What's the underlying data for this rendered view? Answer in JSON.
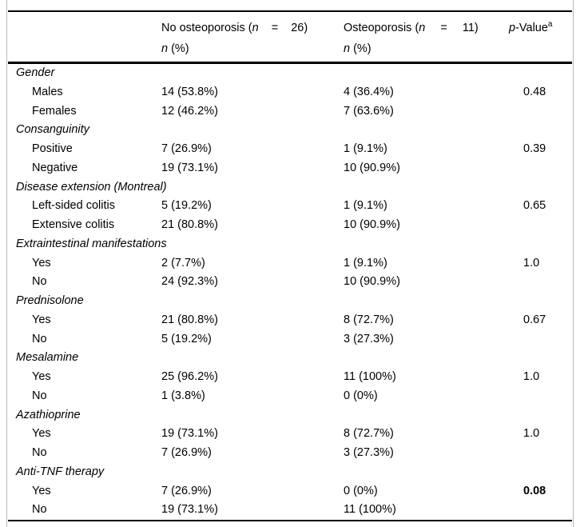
{
  "header": {
    "col2": {
      "prefix": "No osteoporosis (",
      "n": "n",
      "eq": "=",
      "count": "26)"
    },
    "col3": {
      "prefix": "Osteoporosis (",
      "n": "n",
      "eq": "=",
      "count": "11)"
    },
    "col4": {
      "p": "p",
      "rest": "-Value",
      "sup": "a"
    },
    "subheader": {
      "n": "n",
      "pct": "(%)"
    }
  },
  "table": {
    "groups": [
      {
        "label": "Gender",
        "rows": [
          {
            "label": "Males",
            "no_osteoporosis": "14 (53.8%)",
            "osteoporosis": "4 (36.4%)",
            "p_value": "0.48",
            "p_bold": false
          },
          {
            "label": "Females",
            "no_osteoporosis": "12 (46.2%)",
            "osteoporosis": "7 (63.6%)",
            "p_value": "",
            "p_bold": false
          }
        ]
      },
      {
        "label": "Consanguinity",
        "rows": [
          {
            "label": "Positive",
            "no_osteoporosis": "7 (26.9%)",
            "osteoporosis": "1 (9.1%)",
            "p_value": "0.39",
            "p_bold": false
          },
          {
            "label": "Negative",
            "no_osteoporosis": "19 (73.1%)",
            "osteoporosis": "10 (90.9%)",
            "p_value": "",
            "p_bold": false
          }
        ]
      },
      {
        "label": "Disease extension (Montreal)",
        "rows": [
          {
            "label": "Left-sided colitis",
            "no_osteoporosis": "5 (19.2%)",
            "osteoporosis": "1 (9.1%)",
            "p_value": "0.65",
            "p_bold": false
          },
          {
            "label": "Extensive colitis",
            "no_osteoporosis": "21 (80.8%)",
            "osteoporosis": "10 (90.9%)",
            "p_value": "",
            "p_bold": false
          }
        ]
      },
      {
        "label": "Extraintestinal manifestations",
        "rows": [
          {
            "label": "Yes",
            "no_osteoporosis": "2 (7.7%)",
            "osteoporosis": "1 (9.1%)",
            "p_value": "1.0",
            "p_bold": false
          },
          {
            "label": "No",
            "no_osteoporosis": "24 (92.3%)",
            "osteoporosis": "10 (90.9%)",
            "p_value": "",
            "p_bold": false
          }
        ]
      },
      {
        "label": "Prednisolone",
        "rows": [
          {
            "label": "Yes",
            "no_osteoporosis": "21 (80.8%)",
            "osteoporosis": "8 (72.7%)",
            "p_value": "0.67",
            "p_bold": false
          },
          {
            "label": "No",
            "no_osteoporosis": "5 (19.2%)",
            "osteoporosis": "3 (27.3%)",
            "p_value": "",
            "p_bold": false
          }
        ]
      },
      {
        "label": "Mesalamine",
        "rows": [
          {
            "label": "Yes",
            "no_osteoporosis": "25 (96.2%)",
            "osteoporosis": "11 (100%)",
            "p_value": "1.0",
            "p_bold": false
          },
          {
            "label": "No",
            "no_osteoporosis": "1 (3.8%)",
            "osteoporosis": "0 (0%)",
            "p_value": "",
            "p_bold": false
          }
        ]
      },
      {
        "label": "Azathioprine",
        "rows": [
          {
            "label": "Yes",
            "no_osteoporosis": "19 (73.1%)",
            "osteoporosis": "8 (72.7%)",
            "p_value": "1.0",
            "p_bold": false
          },
          {
            "label": "No",
            "no_osteoporosis": "7 (26.9%)",
            "osteoporosis": "3 (27.3%)",
            "p_value": "",
            "p_bold": false
          }
        ]
      },
      {
        "label": "Anti-TNF therapy",
        "rows": [
          {
            "label": "Yes",
            "no_osteoporosis": "7 (26.9%)",
            "osteoporosis": "0 (0%)",
            "p_value": "0.08",
            "p_bold": true
          },
          {
            "label": "No",
            "no_osteoporosis": "19 (73.1%)",
            "osteoporosis": "11 (100%)",
            "p_value": "",
            "p_bold": false
          }
        ]
      }
    ]
  },
  "colors": {
    "rule": "#000000",
    "frame_border": "#b9b9b9",
    "text": "#000000",
    "background": "#ffffff"
  }
}
